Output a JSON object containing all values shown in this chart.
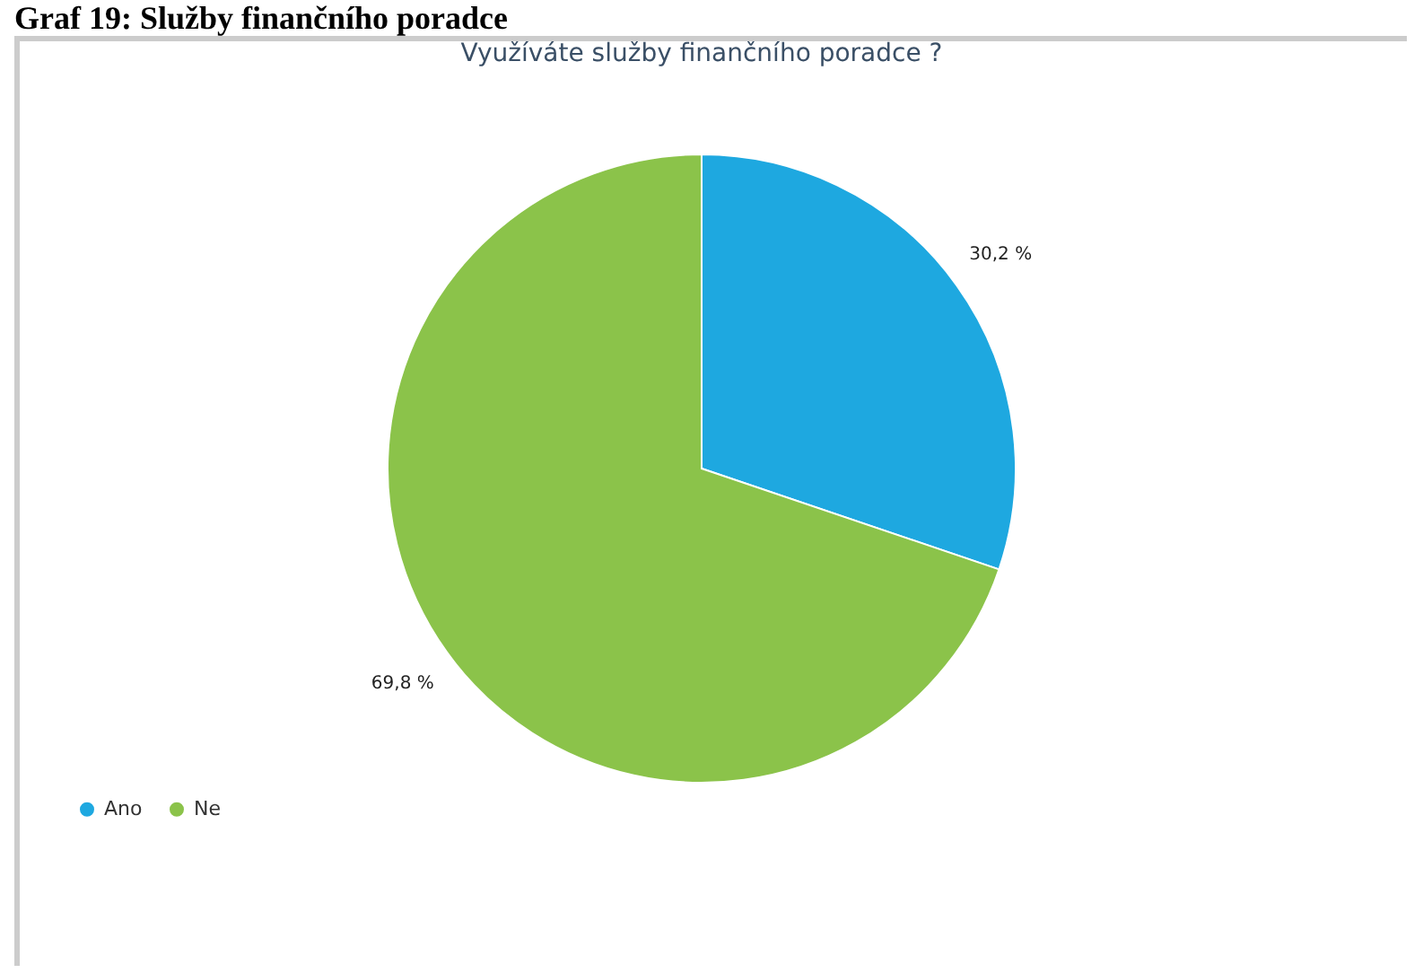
{
  "chart_data": {
    "type": "pie",
    "title": "Využíváte služby finančního poradce ?",
    "annotations": [
      "Graf 19: Služby finančního poradce"
    ],
    "categories": [
      "Ano",
      "Ne"
    ],
    "values": [
      30.2,
      69.8
    ],
    "colors": [
      "#1ea8e0",
      "#8bc34a"
    ],
    "value_labels": [
      "30,2 %",
      "69,8 %"
    ],
    "legend": "bottom left"
  }
}
